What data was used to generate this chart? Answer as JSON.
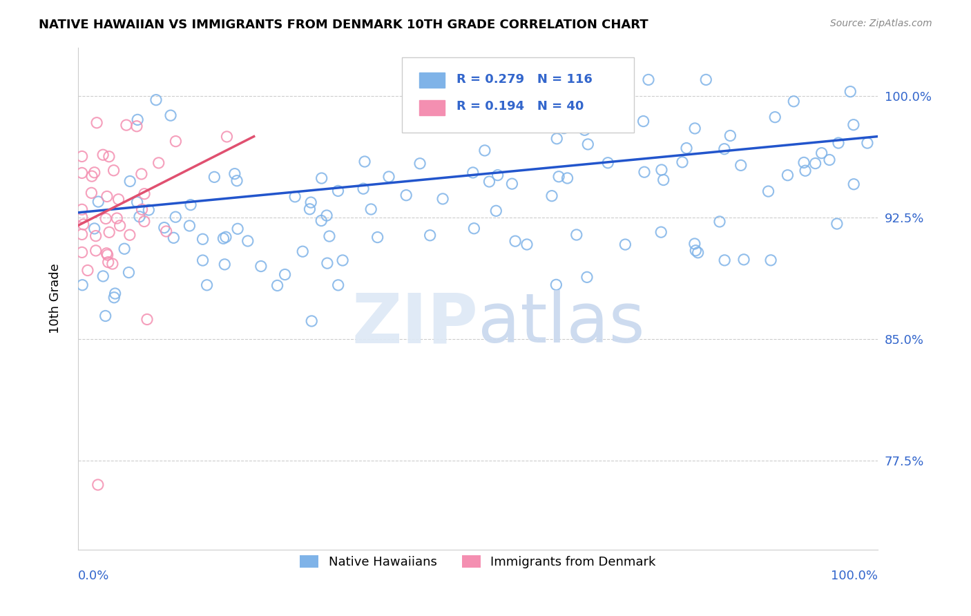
{
  "title": "NATIVE HAWAIIAN VS IMMIGRANTS FROM DENMARK 10TH GRADE CORRELATION CHART",
  "source": "Source: ZipAtlas.com",
  "ylabel": "10th Grade",
  "ytick_labels": [
    "77.5%",
    "85.0%",
    "92.5%",
    "100.0%"
  ],
  "ytick_values": [
    0.775,
    0.85,
    0.925,
    1.0
  ],
  "xlim": [
    0.0,
    1.0
  ],
  "ylim": [
    0.72,
    1.03
  ],
  "legend_blue_r": "R = 0.279",
  "legend_blue_n": "N = 116",
  "legend_pink_r": "R = 0.194",
  "legend_pink_n": "N = 40",
  "blue_color": "#7fb3e8",
  "pink_color": "#f48fb1",
  "trendline_blue_color": "#2255cc",
  "trendline_pink_color": "#e05070",
  "blue_trend_x0": 0.0,
  "blue_trend_x1": 1.0,
  "blue_trend_y0": 0.928,
  "blue_trend_y1": 0.975,
  "pink_trend_x0": 0.0,
  "pink_trend_x1": 0.22,
  "pink_trend_y0": 0.92,
  "pink_trend_y1": 0.975,
  "grid_color": "#cccccc",
  "background_color": "#ffffff",
  "title_fontsize": 13,
  "axis_label_color": "#3366cc",
  "scatter_size": 120,
  "N_blue": 116,
  "N_pink": 40
}
